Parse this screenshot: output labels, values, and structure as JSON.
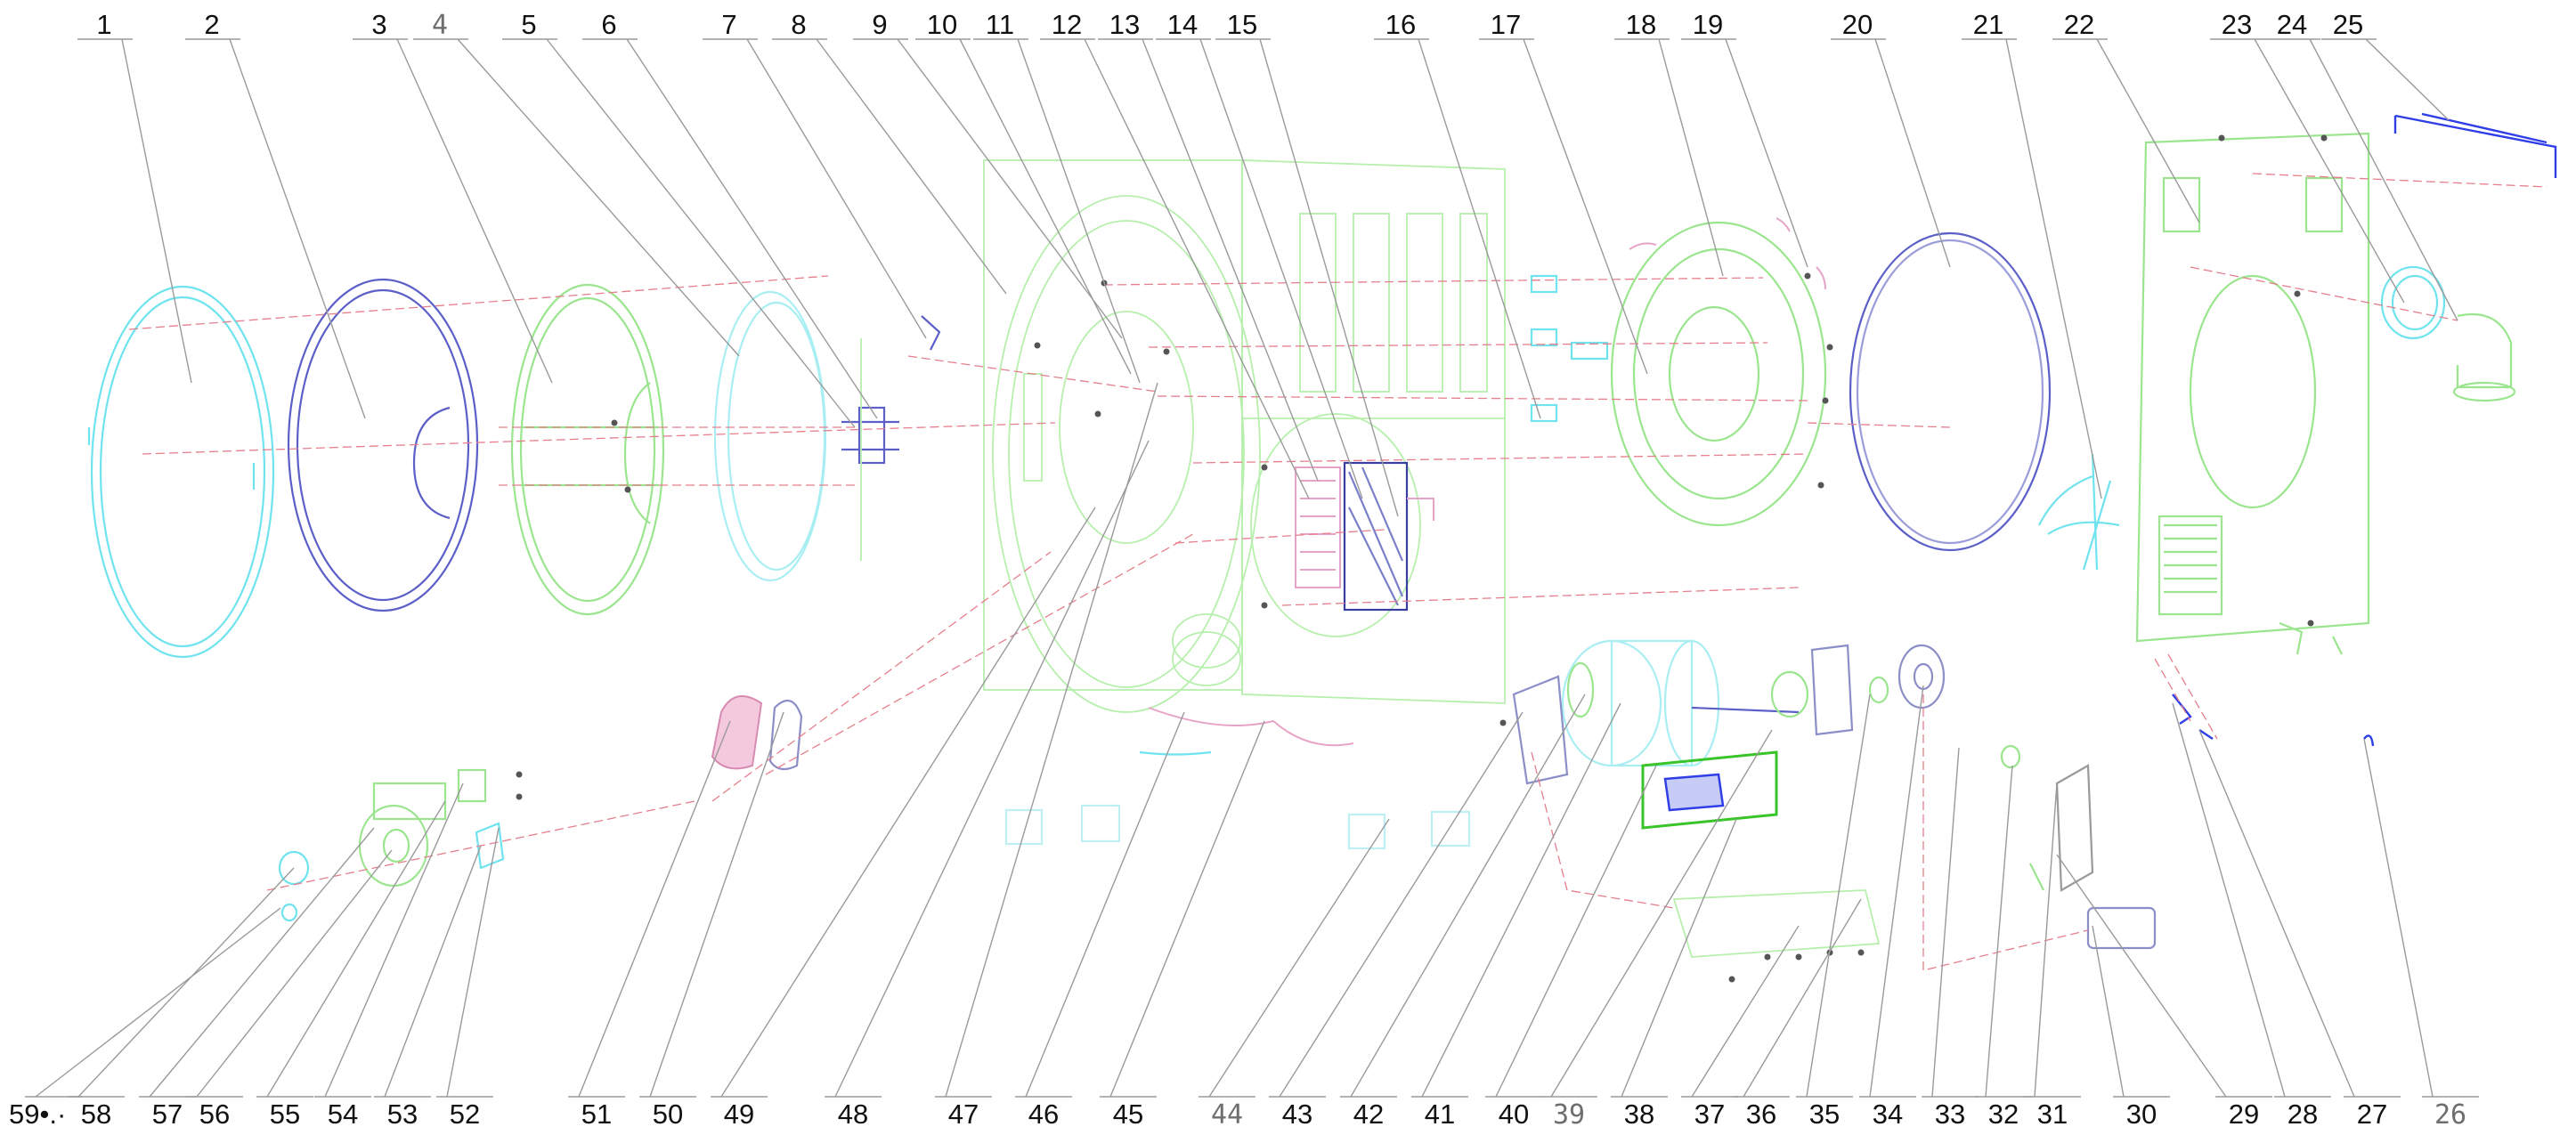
{
  "diagram": {
    "top_labels": [
      "1",
      "2",
      "3",
      "4",
      "5",
      "6",
      "7",
      "8",
      "9",
      "10",
      "11",
      "12",
      "13",
      "14",
      "15",
      "16",
      "17",
      "18",
      "19",
      "20",
      "21",
      "22",
      "23",
      "24",
      "25"
    ],
    "bottom_labels": [
      "59",
      "58",
      "57",
      "56",
      "55",
      "54",
      "53",
      "52",
      "51",
      "50",
      "49",
      "48",
      "47",
      "46",
      "45",
      "44",
      "43",
      "42",
      "41",
      "40",
      "39",
      "38",
      "37",
      "36",
      "35",
      "34",
      "33",
      "32",
      "31",
      "30",
      "29",
      "28",
      "27",
      "26"
    ],
    "bottom_prefix": "59•.·",
    "colors": {
      "cyan": "#6fe3ee",
      "navy": "#5b5fc7",
      "green": "#9be58f",
      "blue": "#2f3ee6",
      "pink": "#e7a3c7",
      "red": "#e57f8c"
    }
  }
}
